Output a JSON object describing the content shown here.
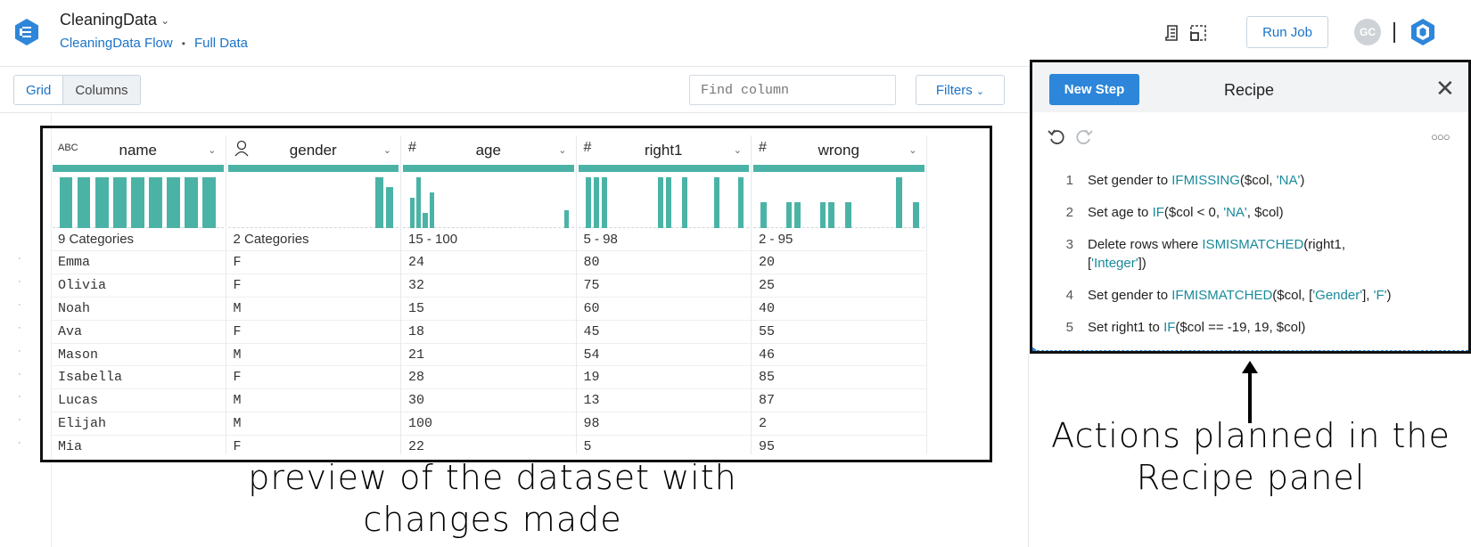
{
  "header": {
    "title": "CleaningData",
    "flow_link": "CleaningData Flow",
    "dataset_link": "Full Data",
    "run_job_label": "Run Job",
    "avatar_initials": "GC"
  },
  "toolbar": {
    "grid_label": "Grid",
    "columns_label": "Columns",
    "find_placeholder": "Find column",
    "filters_label": "Filters"
  },
  "grid": {
    "columns": [
      {
        "name": "name",
        "type_icon": "abc-string-icon",
        "type_text": "ABC",
        "summary": "9 Categories",
        "histogram": [
          1,
          1,
          1,
          1,
          1,
          1,
          1,
          1,
          1
        ]
      },
      {
        "name": "gender",
        "type_icon": "gender-person-icon",
        "type_text": "",
        "summary": "2 Categories",
        "histogram": [
          0,
          0,
          0,
          0,
          0,
          0,
          0,
          0,
          0,
          0,
          0,
          0,
          0,
          0,
          1,
          0.8
        ]
      },
      {
        "name": "age",
        "type_icon": "hash-icon",
        "type_text": "#",
        "summary": "15 - 100",
        "histogram": [
          0.6,
          1,
          0.3,
          0.7,
          0,
          0,
          0,
          0,
          0,
          0,
          0,
          0,
          0,
          0,
          0,
          0,
          0,
          0,
          0,
          0,
          0,
          0,
          0,
          0,
          0.35
        ]
      },
      {
        "name": "right1",
        "type_icon": "hash-icon",
        "type_text": "#",
        "summary": "5 - 98",
        "histogram": [
          1,
          1,
          1,
          0,
          0,
          0,
          0,
          0,
          0,
          1,
          1,
          0,
          1,
          0,
          0,
          0,
          1,
          0,
          0,
          1
        ]
      },
      {
        "name": "wrong",
        "type_icon": "hash-icon",
        "type_text": "#",
        "summary": "2 - 95",
        "histogram": [
          0.5,
          0,
          0,
          0.5,
          0.5,
          0,
          0,
          0.5,
          0.5,
          0,
          0.5,
          0,
          0,
          0,
          0,
          0,
          1,
          0,
          0.5
        ]
      }
    ],
    "rows": [
      [
        "Emma",
        "F",
        "24",
        "80",
        "20"
      ],
      [
        "Olivia",
        "F",
        "32",
        "75",
        "25"
      ],
      [
        "Noah",
        "M",
        "15",
        "60",
        "40"
      ],
      [
        "Ava",
        "F",
        "18",
        "45",
        "55"
      ],
      [
        "Mason",
        "M",
        "21",
        "54",
        "46"
      ],
      [
        "Isabella",
        "F",
        "28",
        "19",
        "85"
      ],
      [
        "Lucas",
        "M",
        "30",
        "13",
        "87"
      ],
      [
        "Elijah",
        "M",
        "100",
        "98",
        "2"
      ],
      [
        "Mia",
        "F",
        "22",
        "5",
        "95"
      ]
    ]
  },
  "recipe": {
    "new_step_label": "New Step",
    "title": "Recipe",
    "steps": [
      {
        "num": "1",
        "parts": [
          [
            "t",
            "Set gender to "
          ],
          [
            "f",
            "IFMISSING"
          ],
          [
            "t",
            "($col, "
          ],
          [
            "f",
            "'NA'"
          ],
          [
            "t",
            ")"
          ]
        ]
      },
      {
        "num": "2",
        "parts": [
          [
            "t",
            "Set age to "
          ],
          [
            "f",
            "IF"
          ],
          [
            "t",
            "($col < 0, "
          ],
          [
            "f",
            "'NA'"
          ],
          [
            "t",
            ", $col)"
          ]
        ]
      },
      {
        "num": "3",
        "parts": [
          [
            "t",
            "Delete rows where "
          ],
          [
            "f",
            "ISMISMATCHED"
          ],
          [
            "t",
            "(right1,"
          ]
        ],
        "line2": [
          [
            "t",
            "["
          ],
          [
            "f",
            "'Integer'"
          ],
          [
            "t",
            "])"
          ]
        ]
      },
      {
        "num": "4",
        "parts": [
          [
            "t",
            "Set gender to "
          ],
          [
            "f",
            "IFMISMATCHED"
          ],
          [
            "t",
            "($col, ["
          ],
          [
            "f",
            "'Gender'"
          ],
          [
            "t",
            "], "
          ],
          [
            "f",
            "'F'"
          ],
          [
            "t",
            ")"
          ]
        ]
      },
      {
        "num": "5",
        "parts": [
          [
            "t",
            "Set right1 to "
          ],
          [
            "f",
            "IF"
          ],
          [
            "t",
            "($col == -19, 19, $col)"
          ]
        ]
      }
    ]
  },
  "annotations": {
    "left_caption_line1": "preview of the dataset with",
    "left_caption_line2": "changes made",
    "right_caption_line1": "Actions planned in the",
    "right_caption_line2": "Recipe panel"
  },
  "colors": {
    "accent": "#1a73c8",
    "primary_button": "#2d86d9",
    "histogram": "#4bb3a6",
    "function_text": "#1a8a9a"
  }
}
